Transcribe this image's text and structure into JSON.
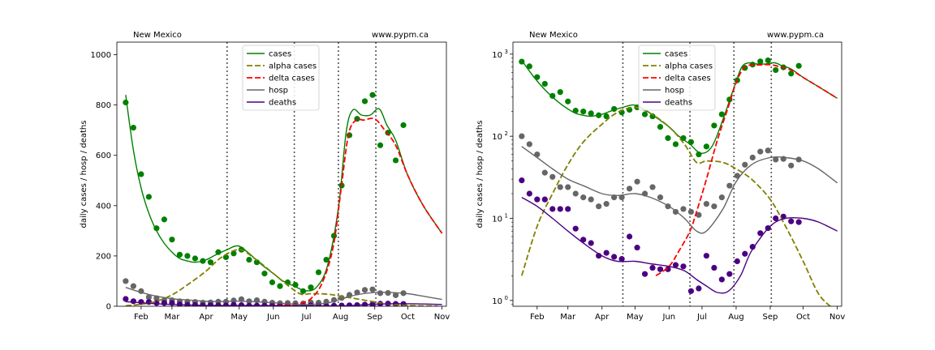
{
  "colors": {
    "cases": "#008000",
    "alpha": "#808000",
    "delta": "#ff0000",
    "hosp": "#666666",
    "deaths": "#4b0082",
    "vline": "#555555"
  },
  "chart_data": [
    {
      "type": "line",
      "yscale": "linear",
      "title_left": "New Mexico",
      "title_right": "www.pypm.ca",
      "xlabel": "",
      "ylabel": "daily cases / hosp / deaths",
      "xlim": [
        "2021-01-10",
        "2021-11-05"
      ],
      "ylim": [
        0,
        1050
      ],
      "yticks": [
        0,
        200,
        400,
        600,
        800,
        1000
      ],
      "xticks": [
        {
          "date": "2021-02-01",
          "label": "Feb"
        },
        {
          "date": "2021-03-01",
          "label": "Mar"
        },
        {
          "date": "2021-04-01",
          "label": "Apr"
        },
        {
          "date": "2021-05-01",
          "label": "May"
        },
        {
          "date": "2021-06-01",
          "label": "Jun"
        },
        {
          "date": "2021-07-01",
          "label": "Jul"
        },
        {
          "date": "2021-08-01",
          "label": "Aug"
        },
        {
          "date": "2021-09-01",
          "label": "Sep"
        },
        {
          "date": "2021-10-01",
          "label": "Oct"
        },
        {
          "date": "2021-11-01",
          "label": "Nov"
        }
      ],
      "vlines": [
        "2021-04-20",
        "2021-06-20",
        "2021-07-30",
        "2021-09-02"
      ],
      "legend_position": "top-center",
      "series": [
        {
          "name": "cases",
          "style": "solid",
          "color_key": "cases",
          "x": [
            "2021-01-18",
            "2021-01-25",
            "2021-02-01",
            "2021-02-08",
            "2021-02-15",
            "2021-02-22",
            "2021-03-01",
            "2021-03-08",
            "2021-03-15",
            "2021-03-22",
            "2021-04-01",
            "2021-04-10",
            "2021-04-20",
            "2021-04-30",
            "2021-05-10",
            "2021-05-20",
            "2021-06-01",
            "2021-06-10",
            "2021-06-20",
            "2021-06-30",
            "2021-07-10",
            "2021-07-20",
            "2021-07-30",
            "2021-08-06",
            "2021-08-12",
            "2021-08-20",
            "2021-08-28",
            "2021-09-05",
            "2021-09-12",
            "2021-09-20",
            "2021-10-01",
            "2021-10-15",
            "2021-11-01"
          ],
          "y": [
            840,
            620,
            470,
            370,
            300,
            250,
            215,
            190,
            180,
            175,
            185,
            205,
            225,
            240,
            210,
            170,
            130,
            100,
            80,
            62,
            75,
            160,
            390,
            690,
            780,
            760,
            760,
            785,
            720,
            660,
            520,
            400,
            290
          ]
        },
        {
          "name": "alpha cases",
          "style": "dashed",
          "color_key": "alpha",
          "x": [
            "2021-01-18",
            "2021-02-01",
            "2021-02-15",
            "2021-03-01",
            "2021-03-15",
            "2021-04-01",
            "2021-04-15",
            "2021-05-01",
            "2021-05-15",
            "2021-06-01",
            "2021-06-15",
            "2021-06-26",
            "2021-07-05",
            "2021-07-20",
            "2021-08-01",
            "2021-08-15",
            "2021-09-01",
            "2021-09-15",
            "2021-10-01",
            "2021-10-15",
            "2021-10-28"
          ],
          "y": [
            2,
            8,
            20,
            45,
            85,
            140,
            195,
            225,
            190,
            130,
            80,
            48,
            50,
            48,
            40,
            30,
            17,
            8,
            3,
            1.2,
            0.8
          ]
        },
        {
          "name": "delta cases",
          "style": "dashed",
          "color_key": "delta",
          "x": [
            "2021-05-20",
            "2021-06-01",
            "2021-06-10",
            "2021-06-20",
            "2021-06-26",
            "2021-07-05",
            "2021-07-15",
            "2021-07-25",
            "2021-08-01",
            "2021-08-08",
            "2021-08-15",
            "2021-08-22",
            "2021-09-01",
            "2021-09-10",
            "2021-09-20",
            "2021-10-01",
            "2021-10-15",
            "2021-11-01"
          ],
          "y": [
            2,
            2.6,
            4,
            7,
            12,
            30,
            90,
            230,
            450,
            680,
            740,
            740,
            745,
            700,
            640,
            520,
            400,
            290
          ]
        },
        {
          "name": "hosp",
          "style": "solid",
          "color_key": "hosp",
          "x": [
            "2021-01-18",
            "2021-02-01",
            "2021-02-15",
            "2021-03-01",
            "2021-03-15",
            "2021-04-01",
            "2021-04-15",
            "2021-05-01",
            "2021-05-15",
            "2021-06-01",
            "2021-06-15",
            "2021-06-26",
            "2021-07-05",
            "2021-07-20",
            "2021-08-01",
            "2021-08-15",
            "2021-09-01",
            "2021-09-15",
            "2021-10-01",
            "2021-10-15",
            "2021-11-01"
          ],
          "y": [
            75,
            55,
            40,
            30,
            25,
            20,
            19,
            20,
            18,
            14,
            10,
            7,
            7,
            13,
            28,
            45,
            55,
            55,
            50,
            40,
            27
          ]
        },
        {
          "name": "deaths",
          "style": "solid",
          "color_key": "deaths",
          "x": [
            "2021-01-18",
            "2021-02-01",
            "2021-02-15",
            "2021-03-01",
            "2021-03-15",
            "2021-04-01",
            "2021-04-15",
            "2021-05-01",
            "2021-05-15",
            "2021-06-01",
            "2021-06-15",
            "2021-06-26",
            "2021-07-05",
            "2021-07-15",
            "2021-07-25",
            "2021-08-05",
            "2021-08-15",
            "2021-09-01",
            "2021-09-15",
            "2021-10-01",
            "2021-10-15",
            "2021-11-01"
          ],
          "y": [
            18,
            14,
            10,
            7,
            5,
            3.5,
            3,
            3,
            2.8,
            2.6,
            2.3,
            1.8,
            1.5,
            1.25,
            1.3,
            2,
            4,
            8,
            10,
            10,
            9,
            7
          ]
        }
      ],
      "points": [
        {
          "name": "cases",
          "color_key": "cases",
          "x": [
            "2021-01-18",
            "2021-01-25",
            "2021-02-01",
            "2021-02-08",
            "2021-02-15",
            "2021-02-22",
            "2021-03-01",
            "2021-03-08",
            "2021-03-15",
            "2021-03-22",
            "2021-03-29",
            "2021-04-05",
            "2021-04-12",
            "2021-04-19",
            "2021-04-26",
            "2021-05-03",
            "2021-05-10",
            "2021-05-17",
            "2021-05-24",
            "2021-05-31",
            "2021-06-07",
            "2021-06-14",
            "2021-06-21",
            "2021-06-28",
            "2021-07-05",
            "2021-07-12",
            "2021-07-19",
            "2021-07-26",
            "2021-08-02",
            "2021-08-09",
            "2021-08-16",
            "2021-08-23",
            "2021-08-30",
            "2021-09-06",
            "2021-09-13",
            "2021-09-20",
            "2021-09-27"
          ],
          "y": [
            810,
            710,
            525,
            435,
            310,
            345,
            265,
            205,
            200,
            190,
            180,
            175,
            215,
            195,
            210,
            225,
            185,
            175,
            130,
            95,
            80,
            95,
            85,
            60,
            75,
            135,
            185,
            280,
            480,
            680,
            745,
            815,
            840,
            640,
            690,
            580,
            720
          ]
        },
        {
          "name": "hosp",
          "color_key": "hosp",
          "x": [
            "2021-01-18",
            "2021-01-25",
            "2021-02-01",
            "2021-02-08",
            "2021-02-15",
            "2021-02-22",
            "2021-03-01",
            "2021-03-08",
            "2021-03-15",
            "2021-03-22",
            "2021-03-29",
            "2021-04-05",
            "2021-04-12",
            "2021-04-19",
            "2021-04-26",
            "2021-05-03",
            "2021-05-10",
            "2021-05-17",
            "2021-05-24",
            "2021-05-31",
            "2021-06-07",
            "2021-06-14",
            "2021-06-21",
            "2021-06-28",
            "2021-07-05",
            "2021-07-12",
            "2021-07-19",
            "2021-07-26",
            "2021-08-02",
            "2021-08-09",
            "2021-08-16",
            "2021-08-23",
            "2021-08-30",
            "2021-09-06",
            "2021-09-13",
            "2021-09-20",
            "2021-09-27"
          ],
          "y": [
            100,
            80,
            60,
            36,
            32,
            24,
            24,
            20,
            18,
            17,
            14,
            15,
            18,
            18,
            23,
            28,
            20,
            24,
            18,
            14,
            12,
            13,
            12,
            11,
            15,
            14,
            18,
            25,
            33,
            45,
            55,
            65,
            67,
            52,
            53,
            44,
            52
          ]
        },
        {
          "name": "deaths",
          "color_key": "deaths",
          "x": [
            "2021-01-18",
            "2021-01-25",
            "2021-02-01",
            "2021-02-08",
            "2021-02-15",
            "2021-02-22",
            "2021-03-01",
            "2021-03-08",
            "2021-03-15",
            "2021-03-22",
            "2021-03-29",
            "2021-04-05",
            "2021-04-12",
            "2021-04-19",
            "2021-04-26",
            "2021-05-03",
            "2021-05-10",
            "2021-05-17",
            "2021-05-24",
            "2021-05-31",
            "2021-06-07",
            "2021-06-14",
            "2021-06-21",
            "2021-06-28",
            "2021-07-05",
            "2021-07-12",
            "2021-07-19",
            "2021-07-26",
            "2021-08-02",
            "2021-08-09",
            "2021-08-16",
            "2021-08-23",
            "2021-08-30",
            "2021-09-06",
            "2021-09-13",
            "2021-09-20",
            "2021-09-27"
          ],
          "y": [
            29,
            20,
            17,
            17,
            13,
            13,
            13,
            7.5,
            5.5,
            5,
            3.5,
            3.8,
            3.4,
            3.2,
            6,
            4.4,
            2.1,
            2.5,
            2.4,
            2.4,
            2.7,
            2.6,
            1.3,
            1.4,
            3.5,
            2.5,
            1.8,
            2.1,
            3,
            3.7,
            4.5,
            6.6,
            7.6,
            10,
            10.5,
            9.2,
            9
          ]
        }
      ]
    },
    {
      "type": "line",
      "yscale": "log",
      "title_left": "New Mexico",
      "title_right": "www.pypm.ca",
      "xlabel": "",
      "ylabel": "daily cases / hosp / deaths",
      "xlim": [
        "2021-01-10",
        "2021-11-05"
      ],
      "ylim": [
        0.85,
        1400
      ],
      "yticks": [
        {
          "value": 1,
          "label_base": "10",
          "label_exp": "0"
        },
        {
          "value": 10,
          "label_base": "10",
          "label_exp": "1"
        },
        {
          "value": 100,
          "label_base": "10",
          "label_exp": "2"
        },
        {
          "value": 1000,
          "label_base": "10",
          "label_exp": "3"
        }
      ],
      "xticks": [
        {
          "date": "2021-02-01",
          "label": "Feb"
        },
        {
          "date": "2021-03-01",
          "label": "Mar"
        },
        {
          "date": "2021-04-01",
          "label": "Apr"
        },
        {
          "date": "2021-05-01",
          "label": "May"
        },
        {
          "date": "2021-06-01",
          "label": "Jun"
        },
        {
          "date": "2021-07-01",
          "label": "Jul"
        },
        {
          "date": "2021-08-01",
          "label": "Aug"
        },
        {
          "date": "2021-09-01",
          "label": "Sep"
        },
        {
          "date": "2021-10-01",
          "label": "Oct"
        },
        {
          "date": "2021-11-01",
          "label": "Nov"
        }
      ],
      "vlines": [
        "2021-04-20",
        "2021-06-20",
        "2021-07-30",
        "2021-09-02"
      ],
      "legend_position": "top-center",
      "series_from": 0,
      "points_from": 0
    }
  ]
}
